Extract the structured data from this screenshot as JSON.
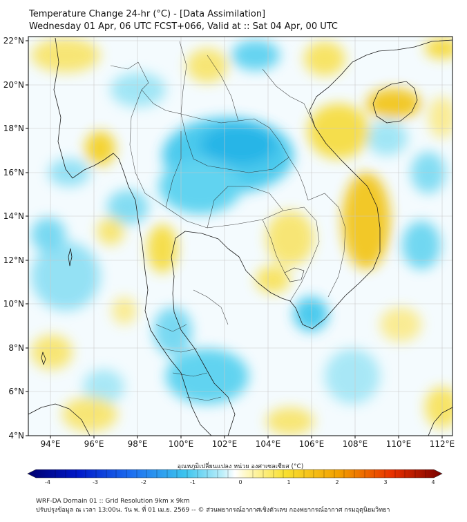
{
  "title": {
    "line1": "Temperature Change 24-hr (°C) - [Data Assimilation]",
    "line2": "Wednesday 01 Apr, 06 UTC FCST+066, Valid at :: Sat 04 Apr, 00 UTC"
  },
  "map": {
    "lat_labels": [
      "22°N",
      "20°N",
      "18°N",
      "16°N",
      "14°N",
      "12°N",
      "10°N",
      "8°N",
      "6°N",
      "4°N"
    ],
    "lon_labels": [
      "94°E",
      "96°E",
      "98°E",
      "100°E",
      "102°E",
      "104°E",
      "106°E",
      "108°E",
      "110°E",
      "112°E"
    ],
    "extent": {
      "lon_min": 93,
      "lon_max": 112.5,
      "lat_min": 4,
      "lat_max": 22.2
    }
  },
  "colorbar": {
    "label": "อุณหภูมิเปลี่ยนแปลง หน่วย องศาเซลเซียส (°C)",
    "ticks": [
      "-4",
      "-3",
      "-2",
      "-1",
      "0",
      "1",
      "2",
      "3",
      "4"
    ],
    "min": -4,
    "max": 4
  },
  "footer": {
    "line1": "WRF-DA Domain 01 :: Grid Resolution 9km x 9km",
    "line2": "ปรับปรุงข้อมูล ณ เวลา 13:00น. วัน พ. ที่ 01 เม.ย. 2569 -- © ส่วนพยากรณ์อากาศเชิงตัวเลข กองพยากรณ์อากาศ กรมอุตุนิยมวิทยา"
  },
  "colors": {
    "warm": "#f5d820",
    "warm_strong": "#f0b000",
    "cool": "#40c8ec",
    "cool_strong": "#10a8e0"
  }
}
